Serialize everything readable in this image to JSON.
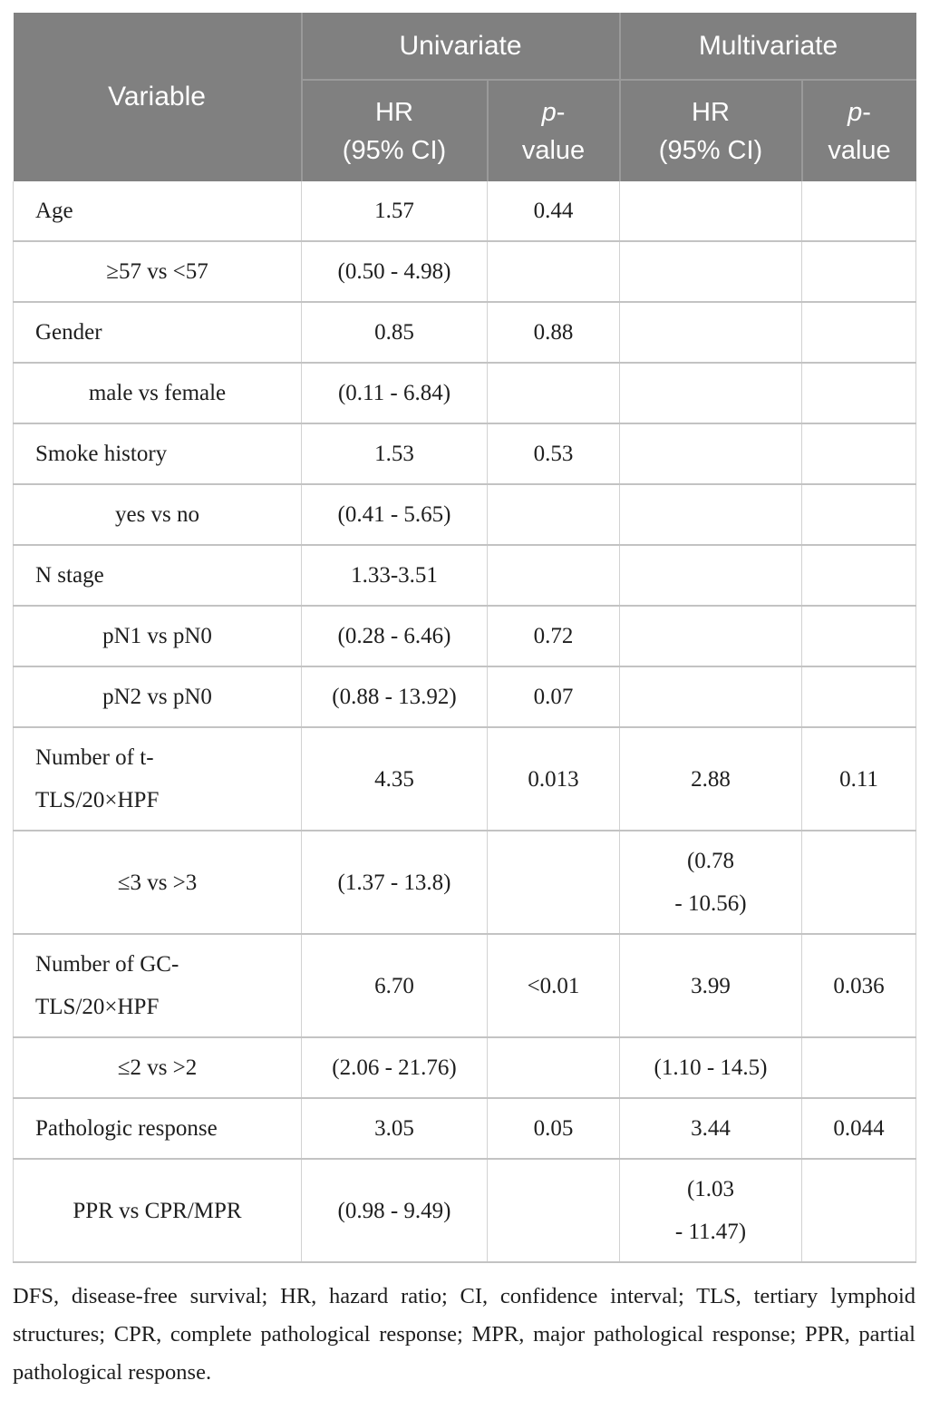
{
  "colors": {
    "header_bg": "#808080",
    "header_text": "#ffffff",
    "header_grid_line": "#9a9a9a",
    "body_text": "#1e1e1e",
    "grid_line_horizontal": "#c3c3c3",
    "grid_line_vertical": "#d2d2d2"
  },
  "table": {
    "header": {
      "variable_label": "Variable",
      "group_univariate": "Univariate",
      "group_multivariate": "Multivariate",
      "hr_line1": "HR",
      "hr_line2": "(95% CI)",
      "p_italic": "p",
      "p_dash": "-",
      "p_line2": "value"
    },
    "rows": [
      {
        "variable": "Age",
        "sub": false,
        "uni_hr": "1.57",
        "uni_p": "0.44",
        "multi_hr": "",
        "multi_p": ""
      },
      {
        "variable": "≥57 vs <57",
        "sub": true,
        "uni_hr": "(0.50 - 4.98)",
        "uni_p": "",
        "multi_hr": "",
        "multi_p": ""
      },
      {
        "variable": "Gender",
        "sub": false,
        "uni_hr": "0.85",
        "uni_p": "0.88",
        "multi_hr": "",
        "multi_p": ""
      },
      {
        "variable": "male vs female",
        "sub": true,
        "uni_hr": "(0.11 - 6.84)",
        "uni_p": "",
        "multi_hr": "",
        "multi_p": ""
      },
      {
        "variable": "Smoke history",
        "sub": false,
        "uni_hr": "1.53",
        "uni_p": "0.53",
        "multi_hr": "",
        "multi_p": ""
      },
      {
        "variable": "yes vs no",
        "sub": true,
        "uni_hr": "(0.41 - 5.65)",
        "uni_p": "",
        "multi_hr": "",
        "multi_p": ""
      },
      {
        "variable": "N stage",
        "sub": false,
        "uni_hr": "1.33-3.51",
        "uni_p": "",
        "multi_hr": "",
        "multi_p": ""
      },
      {
        "variable": "pN1 vs pN0",
        "sub": true,
        "uni_hr": "(0.28 - 6.46)",
        "uni_p": "0.72",
        "multi_hr": "",
        "multi_p": ""
      },
      {
        "variable": "pN2 vs pN0",
        "sub": true,
        "uni_hr": "(0.88 - 13.92)",
        "uni_p": "0.07",
        "multi_hr": "",
        "multi_p": ""
      },
      {
        "variable": "Number of t-\nTLS/20×HPF",
        "sub": false,
        "uni_hr": "4.35",
        "uni_p": "0.013",
        "multi_hr": "2.88",
        "multi_p": "0.11"
      },
      {
        "variable": "≤3 vs >3",
        "sub": true,
        "uni_hr": "(1.37 - 13.8)",
        "uni_p": "",
        "multi_hr": "(0.78\n- 10.56)",
        "multi_p": ""
      },
      {
        "variable": "Number of GC-\nTLS/20×HPF",
        "sub": false,
        "uni_hr": "6.70",
        "uni_p": "<0.01",
        "multi_hr": "3.99",
        "multi_p": "0.036"
      },
      {
        "variable": "≤2 vs >2",
        "sub": true,
        "uni_hr": "(2.06 - 21.76)",
        "uni_p": "",
        "multi_hr": "(1.10 - 14.5)",
        "multi_p": ""
      },
      {
        "variable": "Pathologic response",
        "sub": false,
        "uni_hr": "3.05",
        "uni_p": "0.05",
        "multi_hr": "3.44",
        "multi_p": "0.044"
      },
      {
        "variable": "PPR vs CPR/MPR",
        "sub": true,
        "uni_hr": "(0.98 - 9.49)",
        "uni_p": "",
        "multi_hr": "(1.03\n- 11.47)",
        "multi_p": ""
      }
    ],
    "footnote": "DFS, disease-free survival; HR, hazard ratio; CI, confidence interval; TLS, tertiary lymphoid structures; CPR, complete pathological response; MPR, major pathological response; PPR, partial pathological response."
  }
}
